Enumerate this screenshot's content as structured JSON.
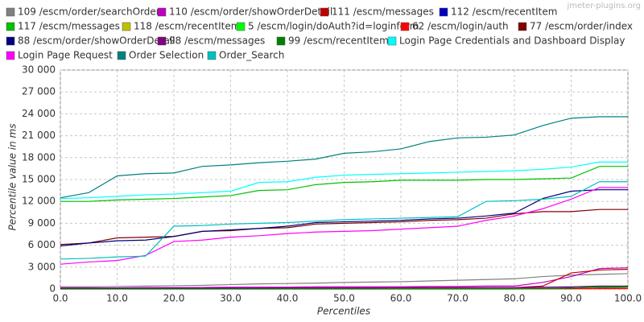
{
  "chart_data": {
    "type": "line",
    "watermark": "jmeter-plugins.org",
    "x_label": "Percentiles",
    "y_label": "Percentile value in ms",
    "x": [
      0,
      5,
      10,
      15,
      20,
      25,
      30,
      35,
      40,
      45,
      50,
      55,
      60,
      65,
      70,
      75,
      80,
      85,
      90,
      95,
      100
    ],
    "xlim": [
      0,
      100
    ],
    "ylim": [
      0,
      30000
    ],
    "grid": true,
    "xticks": [
      {
        "value": 0,
        "label": "0.0"
      },
      {
        "value": 10,
        "label": "10.0"
      },
      {
        "value": 20,
        "label": "20.0"
      },
      {
        "value": 30,
        "label": "30.0"
      },
      {
        "value": 40,
        "label": "40.0"
      },
      {
        "value": 50,
        "label": "50.0"
      },
      {
        "value": 60,
        "label": "60.0"
      },
      {
        "value": 70,
        "label": "70.0"
      },
      {
        "value": 80,
        "label": "80.0"
      },
      {
        "value": 90,
        "label": "90.0"
      },
      {
        "value": 100,
        "label": "100.0"
      }
    ],
    "yticks": [
      0,
      {
        "value": 3000,
        "label": "3 000"
      },
      {
        "value": 6000,
        "label": "6 000"
      },
      {
        "value": 9000,
        "label": "9 000"
      },
      {
        "value": 12000,
        "label": "12 000"
      },
      {
        "value": 15000,
        "label": "15 000"
      },
      {
        "value": 18000,
        "label": "18 000"
      },
      {
        "value": 21000,
        "label": "21 000"
      },
      {
        "value": 24000,
        "label": "24 000"
      },
      {
        "value": 27000,
        "label": "27 000"
      },
      {
        "value": 30000,
        "label": "30 000"
      }
    ],
    "series": [
      {
        "name": "109 /escm/order/searchOrder",
        "color": "#808080",
        "values": [
          300,
          300,
          350,
          400,
          450,
          500,
          600,
          700,
          750,
          800,
          900,
          950,
          1000,
          1100,
          1200,
          1300,
          1400,
          1700,
          1900,
          2000,
          2100
        ]
      },
      {
        "name": "110 /escm/order/showOrderDetail",
        "color": "#c000c0",
        "values": [
          150,
          150,
          150,
          200,
          200,
          200,
          250,
          250,
          250,
          300,
          300,
          300,
          300,
          350,
          350,
          400,
          400,
          900,
          1700,
          2800,
          2900
        ]
      },
      {
        "name": "111 /escm/messages",
        "color": "#c00000",
        "values": [
          50,
          50,
          50,
          50,
          100,
          100,
          100,
          100,
          100,
          150,
          150,
          150,
          150,
          200,
          200,
          200,
          200,
          400,
          2200,
          2600,
          2700
        ]
      },
      {
        "name": "112 /escm/recentItem",
        "color": "#0000c0",
        "values": [
          50,
          50,
          50,
          50,
          50,
          60,
          60,
          60,
          60,
          70,
          70,
          70,
          70,
          80,
          80,
          80,
          90,
          100,
          150,
          200,
          250
        ]
      },
      {
        "name": "117 /escm/messages",
        "color": "#00c000",
        "values": [
          12000,
          12000,
          12200,
          12300,
          12400,
          12600,
          12800,
          13500,
          13600,
          14300,
          14600,
          14700,
          14900,
          14900,
          14900,
          15000,
          15000,
          15100,
          15200,
          16800,
          16800
        ]
      },
      {
        "name": "118 /escm/recentItem",
        "color": "#c0c000",
        "values": [
          30,
          30,
          30,
          30,
          30,
          40,
          40,
          40,
          40,
          40,
          50,
          50,
          50,
          50,
          50,
          60,
          60,
          60,
          80,
          100,
          120
        ]
      },
      {
        "name": "5 /escm/login/doAuth?id=loginform",
        "color": "#00ff00",
        "values": [
          20,
          20,
          20,
          20,
          20,
          30,
          30,
          30,
          30,
          30,
          40,
          40,
          40,
          40,
          40,
          50,
          50,
          60,
          100,
          300,
          300
        ]
      },
      {
        "name": "62 /escm/login/auth",
        "color": "#ff0000",
        "values": [
          10,
          10,
          10,
          10,
          10,
          10,
          10,
          10,
          10,
          10,
          20,
          20,
          20,
          20,
          20,
          20,
          20,
          30,
          30,
          40,
          50
        ]
      },
      {
        "name": "77 /escm/order/index",
        "color": "#800000",
        "values": [
          6100,
          6300,
          7000,
          7100,
          7200,
          7900,
          8000,
          8300,
          8400,
          8900,
          9000,
          9100,
          9200,
          9400,
          9500,
          9700,
          10300,
          10600,
          10600,
          10900,
          10900
        ]
      },
      {
        "name": "88 /escm/order/showOrderDetail",
        "color": "#000080",
        "values": [
          5900,
          6300,
          6600,
          6700,
          7200,
          7900,
          8100,
          8300,
          8600,
          9100,
          9200,
          9300,
          9400,
          9600,
          9700,
          10000,
          10400,
          12400,
          13400,
          13600,
          13600
        ]
      },
      {
        "name": "98 /escm/messages",
        "color": "#800080",
        "values": [
          100,
          100,
          100,
          100,
          120,
          120,
          120,
          120,
          150,
          150,
          150,
          150,
          180,
          180,
          180,
          200,
          200,
          250,
          300,
          400,
          400
        ]
      },
      {
        "name": "99 /escm/recentItem",
        "color": "#008000",
        "values": [
          0,
          0,
          0,
          0,
          0,
          0,
          0,
          0,
          0,
          0,
          0,
          0,
          0,
          0,
          0,
          0,
          0,
          50,
          100,
          300,
          300
        ]
      },
      {
        "name": "Login Page Credentials and Dashboard Display",
        "color": "#00ffff",
        "values": [
          12400,
          12500,
          12700,
          12900,
          13000,
          13200,
          13400,
          14600,
          14700,
          15300,
          15600,
          15700,
          15800,
          15900,
          16000,
          16100,
          16200,
          16400,
          16700,
          17400,
          17400
        ]
      },
      {
        "name": "Login Page Request",
        "color": "#ff00ff",
        "values": [
          3400,
          3700,
          3900,
          4600,
          6500,
          6700,
          7100,
          7300,
          7600,
          7800,
          7900,
          8000,
          8200,
          8400,
          8600,
          9400,
          10000,
          11000,
          12300,
          13900,
          13900
        ]
      },
      {
        "name": "Order Selection",
        "color": "#008080",
        "values": [
          12500,
          13200,
          15500,
          15800,
          15900,
          16800,
          17000,
          17300,
          17500,
          17800,
          18600,
          18800,
          19200,
          20200,
          20700,
          20800,
          21100,
          22400,
          23400,
          23600,
          23600
        ]
      },
      {
        "name": "Order_Search",
        "color": "#00c0c0",
        "values": [
          4100,
          4200,
          4400,
          4500,
          8600,
          8700,
          8900,
          9000,
          9100,
          9300,
          9500,
          9600,
          9700,
          9800,
          9900,
          12000,
          12100,
          12300,
          12700,
          14700,
          14700
        ]
      }
    ]
  }
}
